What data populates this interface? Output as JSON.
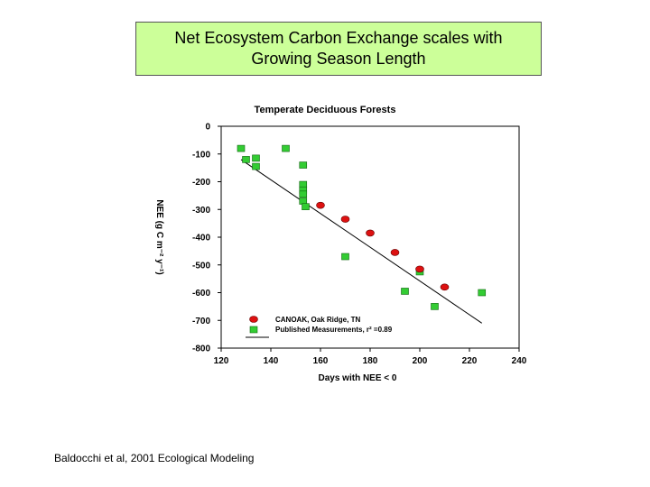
{
  "slide": {
    "title_line1": "Net Ecosystem Carbon Exchange scales with",
    "title_line2": "Growing Season Length",
    "citation": "Baldocchi et al, 2001 Ecological Modeling",
    "title_bg": "#ccff99"
  },
  "chart_data": {
    "type": "scatter",
    "title": "Temperate Deciduous Forests",
    "xlabel": "Days with NEE < 0",
    "ylabel": "NEE (g C m⁻² y⁻¹)",
    "xlim": [
      120,
      240
    ],
    "ylim": [
      -800,
      0
    ],
    "x_ticks": [
      120,
      140,
      160,
      180,
      200,
      220,
      240
    ],
    "y_ticks": [
      0,
      -100,
      -200,
      -300,
      -400,
      -500,
      -600,
      -700,
      -800
    ],
    "x_tick_labels": [
      "120",
      "140",
      "160",
      "180",
      "200",
      "220",
      "240"
    ],
    "y_tick_labels": [
      "0",
      "-100",
      "-200",
      "-300",
      "-400",
      "-500",
      "-600",
      "-700",
      "-800"
    ],
    "legend_position": "lower-left",
    "series": [
      {
        "name": "CANOAK, Oak Ridge, TN",
        "marker": "circle",
        "color": "#dd1111",
        "x": [
          160,
          170,
          180,
          190,
          200,
          210
        ],
        "y": [
          -285,
          -335,
          -385,
          -455,
          -515,
          -580
        ]
      },
      {
        "name": "Published Measurements, r² =0.89",
        "marker": "square",
        "color": "#33cc33",
        "x": [
          128,
          130,
          134,
          134,
          146,
          153,
          153,
          153,
          153,
          153,
          154,
          170,
          194,
          200,
          206,
          225
        ],
        "y": [
          -80,
          -120,
          -115,
          -145,
          -80,
          -140,
          -210,
          -230,
          -245,
          -270,
          -290,
          -470,
          -595,
          -525,
          -650,
          -600
        ]
      },
      {
        "name": "regression-line",
        "x": [
          128,
          225
        ],
        "y": [
          -120,
          -710
        ]
      }
    ]
  }
}
